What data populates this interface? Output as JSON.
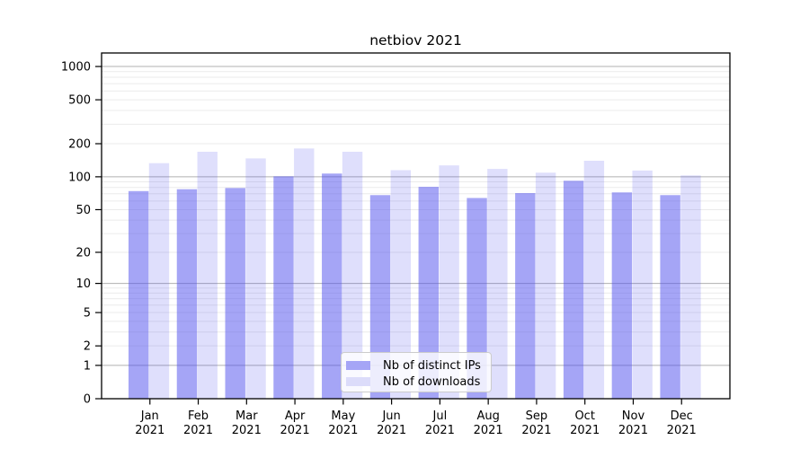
{
  "chart_data": {
    "type": "bar",
    "title": "netbiov 2021",
    "x_year": "2021",
    "categories": [
      "Jan",
      "Feb",
      "Mar",
      "Apr",
      "May",
      "Jun",
      "Jul",
      "Aug",
      "Sep",
      "Oct",
      "Nov",
      "Dec"
    ],
    "series": [
      {
        "name": "Nb of distinct IPs",
        "color": "#4b4bee",
        "opacity": 0.5,
        "values": [
          74,
          77,
          79,
          101,
          107,
          68,
          81,
          64,
          71,
          92,
          72,
          68
        ]
      },
      {
        "name": "Nb of downloads",
        "color": "#4b4bee",
        "opacity": 0.18,
        "values": [
          133,
          169,
          147,
          181,
          169,
          115,
          127,
          118,
          109,
          140,
          114,
          103
        ]
      }
    ],
    "scale": "log1p",
    "ylim": [
      0,
      1325
    ],
    "xlabel": "",
    "ylabel": "",
    "grid": true,
    "legend_position": "lower center",
    "y_ticks": [
      1000,
      500,
      200,
      100,
      50,
      20,
      10,
      5,
      2,
      1,
      0
    ],
    "y_major_gridlines": [
      1,
      10,
      100,
      1000
    ],
    "y_minor_gridlines": [
      2,
      3,
      4,
      5,
      6,
      7,
      8,
      9,
      20,
      30,
      40,
      50,
      60,
      70,
      80,
      90,
      200,
      300,
      400,
      500,
      600,
      700,
      800,
      900
    ]
  },
  "style": {
    "bar_dark_hex": "#a5a5f6",
    "bar_light_hex": "#dcdcfa",
    "major_grid": "#b0b0b0",
    "minor_grid": "#ebebeb",
    "spine": "#000000",
    "tick": "#000000",
    "legend_bg": "rgba(255,255,255,0.8)",
    "legend_border": "#cccccc"
  }
}
